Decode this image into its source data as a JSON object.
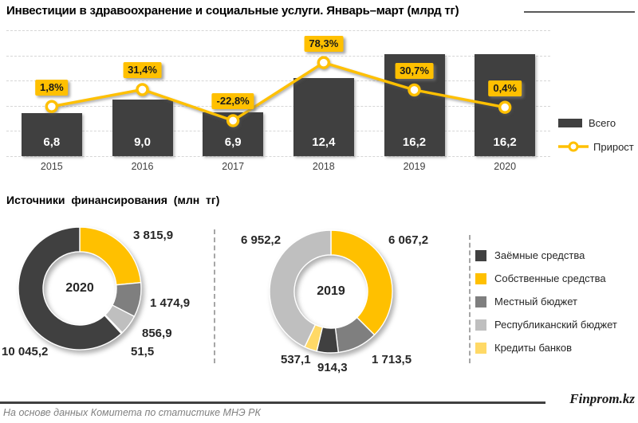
{
  "header": {
    "title": "Инвестиции в здравоохранение и социальные услуги. Январь–март (млрд тг)"
  },
  "chart_data": [
    {
      "type": "bar",
      "title": "Инвестиции в здравоохранение и социальные услуги. Январь–март (млрд тг)",
      "categories": [
        "2015",
        "2016",
        "2017",
        "2018",
        "2019",
        "2020"
      ],
      "series": [
        {
          "name": "Всего",
          "chart": "bar",
          "color": "#404040",
          "unit": "млрд тг",
          "values": [
            6.8,
            9.0,
            6.9,
            12.4,
            16.2,
            16.2
          ],
          "labels": [
            "6,8",
            "9,0",
            "6,9",
            "12,4",
            "16,2",
            "16,2"
          ]
        },
        {
          "name": "Прирост",
          "chart": "line",
          "color": "#FFC000",
          "unit": "%",
          "values": [
            1.8,
            31.4,
            -22.8,
            78.3,
            30.7,
            0.4
          ],
          "labels": [
            "1,8%",
            "31,4%",
            "-22,8%",
            "78,3%",
            "30,7%",
            "0,4%"
          ]
        }
      ],
      "ylim": [
        0,
        20
      ],
      "grid": true,
      "legend_position": "right"
    },
    {
      "type": "pie",
      "title": "Источники финансирования (млн тг)",
      "unit": "млн тг",
      "donuts": [
        {
          "year": "2020",
          "total": 16244.4,
          "slices": [
            {
              "name": "Собственные средства",
              "value": 3815.9,
              "label": "3 815,9",
              "color": "#FFC000"
            },
            {
              "name": "Местный бюджет",
              "value": 1474.9,
              "label": "1 474,9",
              "color": "#7F7F7F"
            },
            {
              "name": "Республиканский бюджет",
              "value": 856.9,
              "label": "856,9",
              "color": "#BFBFBF"
            },
            {
              "name": "Кредиты банков",
              "value": 51.5,
              "label": "51,5",
              "color": "#FFD966"
            },
            {
              "name": "Заёмные средства",
              "value": 10045.2,
              "label": "10 045,2",
              "color": "#404040"
            }
          ]
        },
        {
          "year": "2019",
          "total": 16184.3,
          "slices": [
            {
              "name": "Собственные средства",
              "value": 6067.2,
              "label": "6 067,2",
              "color": "#FFC000"
            },
            {
              "name": "Местный бюджет",
              "value": 1713.5,
              "label": "1 713,5",
              "color": "#7F7F7F"
            },
            {
              "name": "Заёмные средства",
              "value": 914.3,
              "label": "914,3",
              "color": "#404040"
            },
            {
              "name": "Кредиты банков",
              "value": 537.1,
              "label": "537,1",
              "color": "#FFD966"
            },
            {
              "name": "Республиканский бюджет",
              "value": 6952.2,
              "label": "6 952,2",
              "color": "#BFBFBF"
            }
          ]
        }
      ],
      "legend": [
        {
          "name": "Заёмные средства",
          "color": "#404040"
        },
        {
          "name": "Собственные средства",
          "color": "#FFC000"
        },
        {
          "name": "Местный бюджет",
          "color": "#7F7F7F"
        },
        {
          "name": "Республиканский бюджет",
          "color": "#BFBFBF"
        },
        {
          "name": "Кредиты банков",
          "color": "#FFD966"
        }
      ],
      "legend_position": "right"
    }
  ],
  "footer": {
    "source": "На основе данных Комитета по статистике МНЭ РК",
    "brand": "Finprom.kz"
  }
}
